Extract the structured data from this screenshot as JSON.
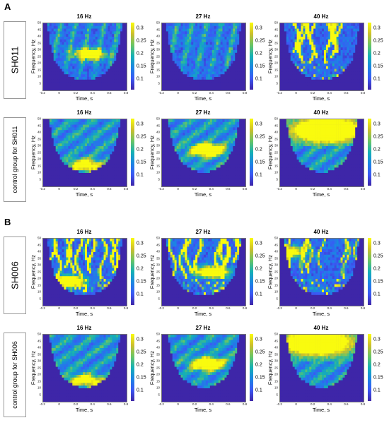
{
  "panels": [
    {
      "letter": "A",
      "rows": [
        {
          "label": "SH011",
          "style": "big",
          "plots": [
            {
              "title": "16 Hz",
              "pattern": "sparse",
              "blob": {
                "f": 27,
                "t": 0.35,
                "strength": 0.6
              }
            },
            {
              "title": "27 Hz",
              "pattern": "sparse",
              "blob": null
            },
            {
              "title": "40 Hz",
              "pattern": "streaks_strong",
              "blob": null
            }
          ]
        },
        {
          "label": "control group for SH011",
          "style": "small",
          "plots": [
            {
              "title": "16 Hz",
              "pattern": "cone",
              "blob": {
                "f": 16,
                "t": 0.3,
                "strength": 0.5
              }
            },
            {
              "title": "27 Hz",
              "pattern": "cone",
              "blob": {
                "f": 27,
                "t": 0.35,
                "strength": 0.85
              }
            },
            {
              "title": "40 Hz",
              "pattern": "cone_top",
              "blob": {
                "f": 42,
                "t": 0.35,
                "strength": 1.0
              }
            }
          ]
        }
      ]
    },
    {
      "letter": "B",
      "rows": [
        {
          "label": "SH006",
          "style": "big",
          "plots": [
            {
              "title": "16 Hz",
              "pattern": "streaks_strong",
              "blob": {
                "f": 18,
                "t": 0.1,
                "strength": 0.8
              }
            },
            {
              "title": "27 Hz",
              "pattern": "streaks_strong",
              "blob": {
                "f": 25,
                "t": 0.4,
                "strength": 0.8
              }
            },
            {
              "title": "40 Hz",
              "pattern": "streaks",
              "blob": {
                "f": 40,
                "t": -0.1,
                "strength": 0.6
              }
            }
          ]
        },
        {
          "label": "control group for SH006",
          "style": "small",
          "plots": [
            {
              "title": "16 Hz",
              "pattern": "cone",
              "blob": {
                "f": 16,
                "t": 0.3,
                "strength": 0.5
              }
            },
            {
              "title": "27 Hz",
              "pattern": "cone",
              "blob": {
                "f": 28,
                "t": 0.35,
                "strength": 0.8
              }
            },
            {
              "title": "40 Hz",
              "pattern": "cone_top",
              "blob": {
                "f": 44,
                "t": 0.25,
                "strength": 1.0
              }
            }
          ]
        }
      ]
    }
  ],
  "axes": {
    "xlabel": "Time, s",
    "ylabel": "Frequency, Hz",
    "xticks": [
      "-0.2",
      "0",
      "0.2",
      "0.4",
      "0.6",
      "0.8"
    ],
    "yticks": [
      "50",
      "45",
      "40",
      "35",
      "30",
      "25",
      "20",
      "15",
      "10",
      "5"
    ]
  },
  "colorbar": {
    "ticks": [
      "0.3",
      "0.25",
      "0.2",
      "0.15",
      "0.1"
    ]
  },
  "chart_data": {
    "type": "heatmap",
    "title": "",
    "xlabel": "Time, s",
    "ylabel": "Frequency, Hz",
    "xlim": [
      -0.2,
      0.8
    ],
    "ylim": [
      0,
      50
    ],
    "clim": [
      0.05,
      0.33
    ],
    "colormap": "parula",
    "subplots": [
      "SH011 16 Hz",
      "SH011 27 Hz",
      "SH011 40 Hz",
      "control group for SH011 16 Hz",
      "control group for SH011 27 Hz",
      "control group for SH011 40 Hz",
      "SH006 16 Hz",
      "SH006 27 Hz",
      "SH006 40 Hz",
      "control group for SH006 16 Hz",
      "control group for SH006 27 Hz",
      "control group for SH006 40 Hz"
    ]
  }
}
